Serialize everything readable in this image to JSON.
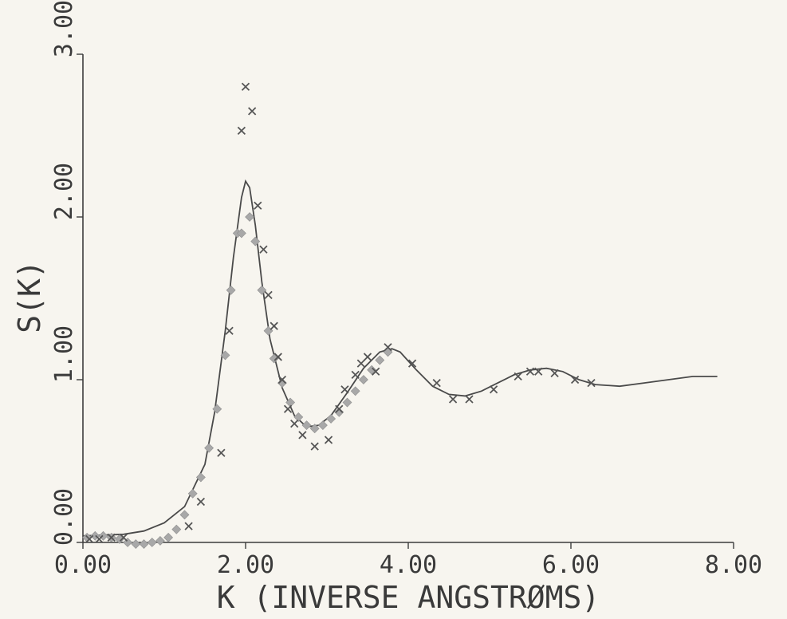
{
  "chart_data": {
    "type": "scatter",
    "title": "",
    "xlabel": "K (INVERSE ANGSTRØMS)",
    "ylabel": "S(K)",
    "xlim": [
      0,
      8
    ],
    "ylim": [
      0,
      3
    ],
    "grid": false,
    "x_ticks": [
      "0.00",
      "2.00",
      "4.00",
      "6.00",
      "8.00"
    ],
    "y_ticks": [
      "0.00",
      "1.00",
      "2.00",
      "3.00"
    ],
    "series": [
      {
        "marker": "line",
        "x": [
          0.0,
          0.25,
          0.5,
          0.75,
          1.0,
          1.25,
          1.5,
          1.62,
          1.75,
          1.85,
          1.95,
          2.0,
          2.05,
          2.12,
          2.2,
          2.3,
          2.45,
          2.6,
          2.75,
          2.9,
          3.05,
          3.25,
          3.45,
          3.65,
          3.8,
          3.9,
          4.1,
          4.3,
          4.5,
          4.7,
          4.9,
          5.1,
          5.3,
          5.5,
          5.7,
          5.9,
          6.1,
          6.3,
          6.6,
          6.9,
          7.2,
          7.5,
          7.8
        ],
        "y": [
          0.04,
          0.045,
          0.05,
          0.07,
          0.12,
          0.22,
          0.48,
          0.8,
          1.3,
          1.75,
          2.12,
          2.22,
          2.18,
          1.95,
          1.6,
          1.25,
          0.95,
          0.78,
          0.71,
          0.72,
          0.78,
          0.92,
          1.07,
          1.17,
          1.19,
          1.17,
          1.06,
          0.96,
          0.91,
          0.9,
          0.93,
          0.98,
          1.03,
          1.06,
          1.07,
          1.05,
          1.0,
          0.97,
          0.96,
          0.98,
          1.0,
          1.02,
          1.02
        ]
      },
      {
        "marker": "x",
        "x": [
          0.08,
          0.2,
          0.35,
          0.5,
          1.3,
          1.45,
          1.7,
          1.8,
          1.95,
          2.0,
          2.08,
          2.15,
          2.22,
          2.28,
          2.35,
          2.4,
          2.45,
          2.52,
          2.6,
          2.7,
          2.85,
          3.02,
          3.15,
          3.22,
          3.35,
          3.42,
          3.5,
          3.6,
          3.75,
          4.05,
          4.35,
          4.55,
          4.75,
          5.05,
          5.35,
          5.5,
          5.6,
          5.8,
          6.05,
          6.25
        ],
        "y": [
          0.02,
          0.02,
          0.03,
          0.03,
          0.1,
          0.25,
          0.55,
          1.3,
          2.53,
          2.8,
          2.65,
          2.07,
          1.8,
          1.52,
          1.33,
          1.14,
          1.0,
          0.82,
          0.73,
          0.66,
          0.59,
          0.63,
          0.82,
          0.94,
          1.03,
          1.1,
          1.14,
          1.05,
          1.2,
          1.1,
          0.98,
          0.88,
          0.88,
          0.94,
          1.02,
          1.05,
          1.05,
          1.04,
          1.0,
          0.98
        ]
      },
      {
        "marker": "diamond",
        "x": [
          0.05,
          0.15,
          0.25,
          0.35,
          0.45,
          0.55,
          0.65,
          0.75,
          0.85,
          0.95,
          1.05,
          1.15,
          1.25,
          1.35,
          1.45,
          1.55,
          1.65,
          1.75,
          1.82,
          1.9,
          1.95,
          2.05,
          2.12,
          2.2,
          2.28,
          2.35,
          2.45,
          2.55,
          2.65,
          2.75,
          2.85,
          2.95,
          3.05,
          3.15,
          3.25,
          3.35,
          3.45,
          3.55,
          3.65,
          3.75
        ],
        "y": [
          0.03,
          0.04,
          0.04,
          0.03,
          0.02,
          0.0,
          -0.01,
          -0.01,
          0.0,
          0.01,
          0.03,
          0.08,
          0.17,
          0.3,
          0.4,
          0.58,
          0.82,
          1.15,
          1.55,
          1.9,
          1.9,
          2.0,
          1.85,
          1.55,
          1.3,
          1.13,
          0.98,
          0.86,
          0.77,
          0.72,
          0.7,
          0.72,
          0.76,
          0.8,
          0.86,
          0.93,
          1.0,
          1.06,
          1.12,
          1.17
        ]
      }
    ]
  }
}
